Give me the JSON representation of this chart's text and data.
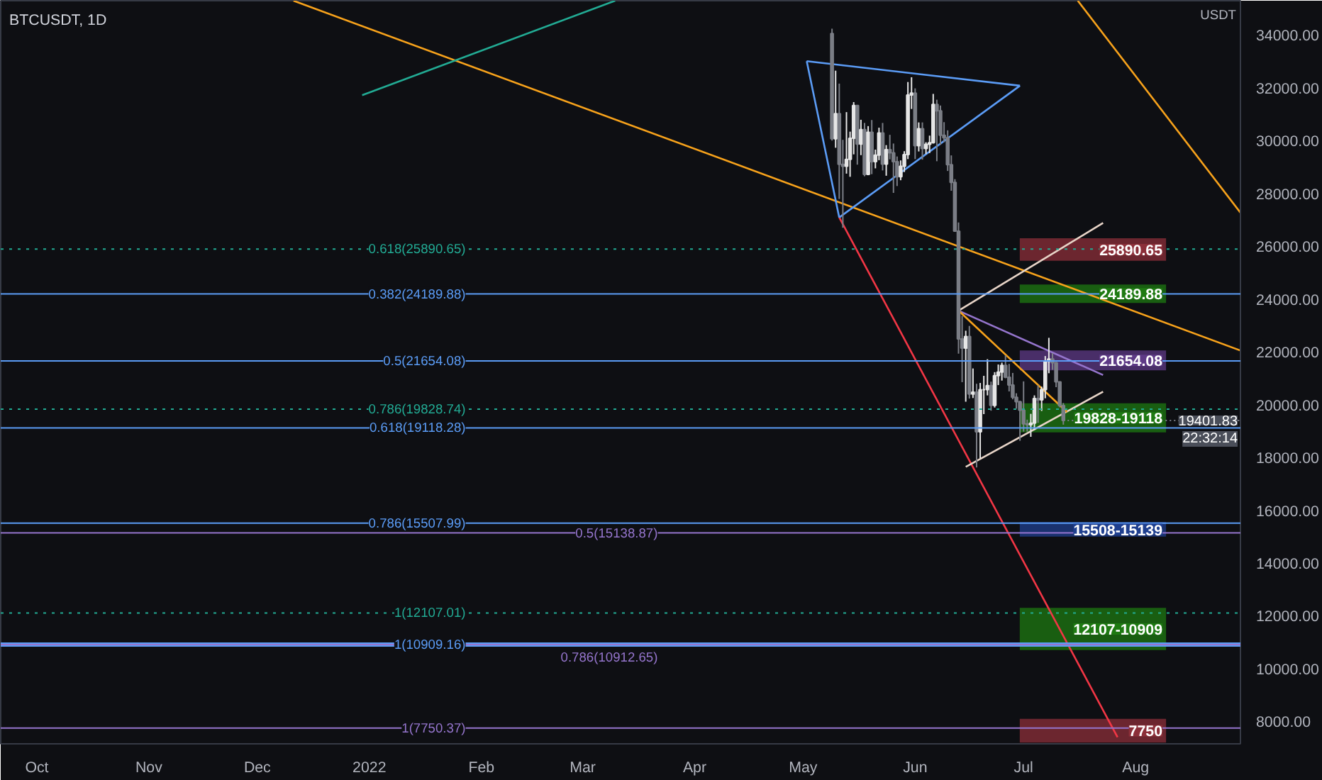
{
  "chart_data": {
    "type": "candlestick",
    "title": "BTCUSDT, 1D",
    "ylabel": "USDT",
    "x": [
      "2022-05-09",
      "2022-05-10",
      "2022-05-11",
      "2022-05-12",
      "2022-05-13",
      "2022-05-14",
      "2022-05-15",
      "2022-05-16",
      "2022-05-17",
      "2022-05-18",
      "2022-05-19",
      "2022-05-20",
      "2022-05-21",
      "2022-05-22",
      "2022-05-23",
      "2022-05-24",
      "2022-05-25",
      "2022-05-26",
      "2022-05-27",
      "2022-05-28",
      "2022-05-29",
      "2022-05-30",
      "2022-05-31",
      "2022-06-01",
      "2022-06-02",
      "2022-06-03",
      "2022-06-04",
      "2022-06-05",
      "2022-06-06",
      "2022-06-07",
      "2022-06-08",
      "2022-06-09",
      "2022-06-10",
      "2022-06-11",
      "2022-06-12",
      "2022-06-13",
      "2022-06-14",
      "2022-06-15",
      "2022-06-16",
      "2022-06-17",
      "2022-06-18",
      "2022-06-19",
      "2022-06-20",
      "2022-06-21",
      "2022-06-22",
      "2022-06-23",
      "2022-06-24",
      "2022-06-25",
      "2022-06-26",
      "2022-06-27",
      "2022-06-28",
      "2022-06-29",
      "2022-06-30",
      "2022-07-01",
      "2022-07-02",
      "2022-07-03",
      "2022-07-04",
      "2022-07-05",
      "2022-07-06",
      "2022-07-07",
      "2022-07-08",
      "2022-07-09",
      "2022-07-10",
      "2022-07-11",
      "2022-07-12"
    ],
    "ohlc": [
      [
        34060,
        34240,
        30000,
        30070
      ],
      [
        30070,
        32650,
        29730,
        31020
      ],
      [
        31020,
        32160,
        27790,
        29100
      ],
      [
        29100,
        30030,
        26700,
        29030
      ],
      [
        29030,
        31080,
        28750,
        29290
      ],
      [
        29290,
        30340,
        28630,
        30090
      ],
      [
        30090,
        31460,
        29480,
        31330
      ],
      [
        31330,
        31330,
        29090,
        29870
      ],
      [
        29870,
        30790,
        29450,
        30420
      ],
      [
        30420,
        30670,
        28650,
        28720
      ],
      [
        28720,
        30550,
        28690,
        30320
      ],
      [
        30320,
        30780,
        28730,
        29200
      ],
      [
        29200,
        29660,
        28950,
        29450
      ],
      [
        29450,
        30490,
        29260,
        30290
      ],
      [
        30290,
        30670,
        28870,
        29110
      ],
      [
        29110,
        29830,
        28670,
        29660
      ],
      [
        29660,
        30220,
        29290,
        29540
      ],
      [
        29540,
        29890,
        28020,
        29200
      ],
      [
        29200,
        29400,
        28280,
        28630
      ],
      [
        28630,
        29250,
        28500,
        29030
      ],
      [
        29030,
        29600,
        28810,
        29470
      ],
      [
        29470,
        32220,
        29300,
        31730
      ],
      [
        31730,
        32400,
        31200,
        31800
      ],
      [
        31800,
        31980,
        29300,
        29810
      ],
      [
        29810,
        30690,
        29590,
        30450
      ],
      [
        30450,
        30690,
        29280,
        29700
      ],
      [
        29700,
        29940,
        29490,
        29860
      ],
      [
        29860,
        30190,
        29530,
        29920
      ],
      [
        29920,
        31770,
        29890,
        31370
      ],
      [
        31370,
        31550,
        29220,
        31130
      ],
      [
        31130,
        31330,
        29840,
        30200
      ],
      [
        30200,
        30700,
        29940,
        30110
      ],
      [
        30110,
        30390,
        28850,
        29090
      ],
      [
        29090,
        29440,
        28100,
        28420
      ],
      [
        28420,
        28540,
        26560,
        26570
      ],
      [
        26570,
        26900,
        21930,
        22490
      ],
      [
        22490,
        23360,
        20850,
        22140
      ],
      [
        22140,
        22800,
        20110,
        22580
      ],
      [
        22580,
        22980,
        20230,
        20400
      ],
      [
        20400,
        21370,
        20250,
        20470
      ],
      [
        20470,
        20790,
        17620,
        18970
      ],
      [
        18970,
        20820,
        17960,
        20570
      ],
      [
        20570,
        21090,
        19640,
        20570
      ],
      [
        20570,
        21720,
        20350,
        20720
      ],
      [
        20720,
        20870,
        19770,
        19970
      ],
      [
        19970,
        21230,
        19890,
        21100
      ],
      [
        21100,
        21520,
        20740,
        21230
      ],
      [
        21230,
        21590,
        20910,
        21490
      ],
      [
        21490,
        21870,
        21000,
        21040
      ],
      [
        21040,
        21540,
        20500,
        20740
      ],
      [
        20740,
        21200,
        20200,
        20280
      ],
      [
        20280,
        20430,
        19850,
        20110
      ],
      [
        20110,
        20140,
        18630,
        19790
      ],
      [
        19790,
        20880,
        18980,
        19270
      ],
      [
        19270,
        19430,
        18980,
        19240
      ],
      [
        19240,
        19650,
        18780,
        19300
      ],
      [
        19300,
        20350,
        19040,
        20230
      ],
      [
        20230,
        20730,
        19310,
        20180
      ],
      [
        20180,
        20680,
        19760,
        20570
      ],
      [
        20570,
        21840,
        20240,
        21640
      ],
      [
        21640,
        22530,
        21190,
        21730
      ],
      [
        21730,
        21950,
        21320,
        21590
      ],
      [
        21590,
        21610,
        20660,
        20860
      ],
      [
        20860,
        20870,
        19900,
        19960
      ],
      [
        19960,
        20060,
        19240,
        19401.83
      ]
    ],
    "xlim": [
      "2021-09-21",
      "2022-08-30"
    ],
    "ylim": [
      7150,
      35300
    ],
    "xticks": [
      {
        "value": "2021-10-01",
        "label": "Oct"
      },
      {
        "value": "2021-11-01",
        "label": "Nov"
      },
      {
        "value": "2021-12-01",
        "label": "Dec"
      },
      {
        "value": "2022-01-01",
        "label": "2022"
      },
      {
        "value": "2022-02-01",
        "label": "Feb"
      },
      {
        "value": "2022-03-01",
        "label": "Mar"
      },
      {
        "value": "2022-04-01",
        "label": "Apr"
      },
      {
        "value": "2022-05-01",
        "label": "May"
      },
      {
        "value": "2022-06-01",
        "label": "Jun"
      },
      {
        "value": "2022-07-01",
        "label": "Jul"
      },
      {
        "value": "2022-08-01",
        "label": "Aug"
      }
    ],
    "yticks": [
      {
        "value": 8000,
        "label": "8000.00"
      },
      {
        "value": 10000,
        "label": "10000.00"
      },
      {
        "value": 12000,
        "label": "12000.00"
      },
      {
        "value": 14000,
        "label": "14000.00"
      },
      {
        "value": 16000,
        "label": "16000.00"
      },
      {
        "value": 18000,
        "label": "18000.00"
      },
      {
        "value": 20000,
        "label": "20000.00"
      },
      {
        "value": 22000,
        "label": "22000.00"
      },
      {
        "value": 24000,
        "label": "24000.00"
      },
      {
        "value": 26000,
        "label": "26000.00"
      },
      {
        "value": 28000,
        "label": "28000.00"
      },
      {
        "value": 30000,
        "label": "30000.00"
      },
      {
        "value": 32000,
        "label": "32000.00"
      },
      {
        "value": 34000,
        "label": "34000.00"
      }
    ],
    "series": [
      {
        "type": "line",
        "color": "#f7a21b",
        "x": [
          "2021-12-11",
          "2022-08-30"
        ],
        "values": [
          35300,
          22050
        ]
      },
      {
        "type": "line",
        "color": "#f7a21b",
        "x": [
          "2022-07-16",
          "2022-08-30"
        ],
        "values": [
          35300,
          27270
        ]
      },
      {
        "type": "line",
        "color": "#f23645",
        "x": [
          "2022-05-11",
          "2022-07-27"
        ],
        "values": [
          27090,
          7400
        ]
      },
      {
        "type": "line",
        "color": "#22ab94",
        "x": [
          "2021-12-30",
          "2022-03-10"
        ],
        "values": [
          31720,
          35300
        ]
      },
      {
        "type": "line",
        "color": "#5b9cf6",
        "x": [
          "2022-05-02",
          "2022-06-30"
        ],
        "values": [
          33010,
          32080
        ]
      },
      {
        "type": "line",
        "color": "#5b9cf6",
        "x": [
          "2022-05-11",
          "2022-06-30"
        ],
        "values": [
          27090,
          32080
        ]
      },
      {
        "type": "line",
        "color": "#5b9cf6",
        "x": [
          "2022-05-02",
          "2022-05-11"
        ],
        "values": [
          33010,
          27090
        ]
      },
      {
        "type": "line",
        "color": "#e8d5c8",
        "x": [
          "2022-06-13",
          "2022-07-23"
        ],
        "values": [
          23560,
          26880
        ]
      },
      {
        "type": "line",
        "color": "#e8d5c8",
        "x": [
          "2022-06-15",
          "2022-07-23"
        ],
        "values": [
          17640,
          20490
        ]
      },
      {
        "type": "line",
        "color": "#9575cd",
        "x": [
          "2022-06-13",
          "2022-07-23"
        ],
        "values": [
          23560,
          21120
        ]
      },
      {
        "type": "line",
        "color": "#f7a21b",
        "x": [
          "2022-06-13",
          "2022-07-13"
        ],
        "values": [
          23560,
          19720
        ]
      }
    ],
    "ref_lines": [
      {
        "axis": "y",
        "value": 25890.65,
        "label": "0.618(25890.65)",
        "color": "#22ab94",
        "line_style": "dotted"
      },
      {
        "axis": "y",
        "value": 24189.88,
        "label": "0.382(24189.88)",
        "color": "#5b9cf6",
        "line_style": "solid"
      },
      {
        "axis": "y",
        "value": 21654.08,
        "label": "0.5(21654.08)",
        "color": "#5b9cf6",
        "line_style": "solid"
      },
      {
        "axis": "y",
        "value": 19828.74,
        "label": "0.786(19828.74)",
        "color": "#22ab94",
        "line_style": "dotted"
      },
      {
        "axis": "y",
        "value": 19118.28,
        "label": "0.618(19118.28)",
        "color": "#5b9cf6",
        "line_style": "solid"
      },
      {
        "axis": "y",
        "value": 15507.99,
        "label": "0.786(15507.99)",
        "color": "#5b9cf6",
        "line_style": "solid"
      },
      {
        "axis": "y",
        "value": 15138.87,
        "label": "0.5(15138.87)",
        "color": "#9575cd",
        "line_style": "solid"
      },
      {
        "axis": "y",
        "value": 12107.01,
        "label": "1(12107.01)",
        "color": "#22ab94",
        "line_style": "dotted"
      },
      {
        "axis": "y",
        "value": 10909.16,
        "label": "1(10909.16)",
        "color": "#5b9cf6",
        "line_style": "solid"
      },
      {
        "axis": "y",
        "value": 10912.65,
        "label": "0.786(10912.65)",
        "color": "#9575cd",
        "line_style": "solid"
      },
      {
        "axis": "y",
        "value": 7750.37,
        "label": "1(7750.37)",
        "color": "#9575cd",
        "line_style": "solid"
      }
    ],
    "bands": [
      {
        "axis": "y",
        "from": 25450,
        "to": 26300,
        "label": "25890.65",
        "color": "#8c2f39"
      },
      {
        "axis": "y",
        "from": 23850,
        "to": 24550,
        "label": "24189.88",
        "color": "#1e7a12"
      },
      {
        "axis": "y",
        "from": 21300,
        "to": 22050,
        "label": "21654.08",
        "color": "#5e3a86"
      },
      {
        "axis": "y",
        "from": 18950,
        "to": 20050,
        "label": "19828-19118",
        "color": "#1e7a12"
      },
      {
        "axis": "y",
        "from": 15000,
        "to": 15550,
        "label": "15508-15139",
        "color": "#1f3f8f"
      },
      {
        "axis": "y",
        "from": 10700,
        "to": 12300,
        "label": "12107-10909",
        "color": "#1e7a12"
      },
      {
        "axis": "y",
        "from": 7200,
        "to": 8100,
        "label": "7750",
        "color": "#8c2f39"
      }
    ],
    "annotations": [
      {
        "text": "19401.83",
        "x": "2022-07-12",
        "y": 19401.83
      },
      "22:32:14"
    ]
  }
}
